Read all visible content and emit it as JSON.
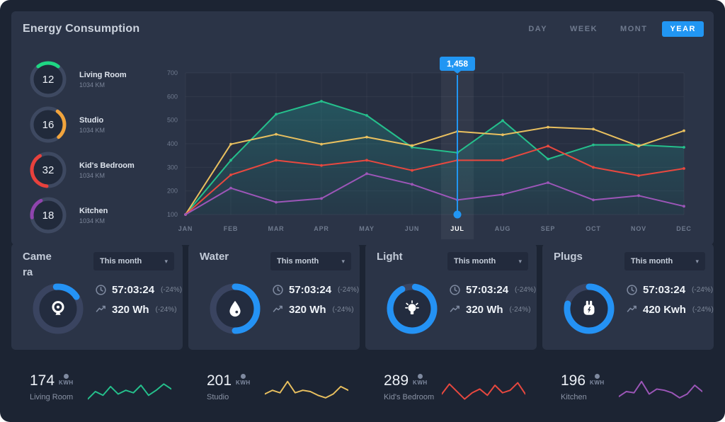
{
  "header": {
    "title": "Energy Consumption",
    "tabs": [
      {
        "label": "DAY",
        "active": false
      },
      {
        "label": "WEEK",
        "active": false
      },
      {
        "label": "MONT",
        "active": false
      },
      {
        "label": "YEAR",
        "active": true
      }
    ],
    "accent": "#2196f3"
  },
  "rooms": [
    {
      "value": "12",
      "label": "Living Room",
      "sub": "1034 KM",
      "color": "#1ed783",
      "arc_start": -38,
      "arc_sweep": 76
    },
    {
      "value": "16",
      "label": "Studio",
      "sub": "1034 KM",
      "color": "#f2a43c",
      "arc_start": 35,
      "arc_sweep": 105
    },
    {
      "value": "32",
      "label": "Kid's Bedroom",
      "sub": "1034 KM",
      "color": "#e8413c",
      "arc_start": 185,
      "arc_sweep": 145
    },
    {
      "value": "18",
      "label": "Kitchen",
      "sub": "1034 KM",
      "color": "#8f44ad",
      "arc_start": 262,
      "arc_sweep": 72
    }
  ],
  "chart_data": {
    "type": "line",
    "x": [
      "JAN",
      "FEB",
      "MAR",
      "APR",
      "MAY",
      "JUN",
      "JUL",
      "AUG",
      "SEP",
      "OCT",
      "NOV",
      "DEC"
    ],
    "ylim": [
      100,
      700
    ],
    "yticks": [
      100,
      200,
      300,
      400,
      500,
      600,
      700
    ],
    "grid": true,
    "legend": "none",
    "highlight_month": "JUL",
    "tooltip": {
      "label": "1,458",
      "month": "JUL",
      "month_index": 6,
      "dot_value": 100
    },
    "area_series": "Living Room",
    "series": [
      {
        "name": "Living Room",
        "color": "#25c08c",
        "values": [
          100,
          330,
          525,
          580,
          520,
          385,
          362,
          498,
          335,
          395,
          395,
          385
        ]
      },
      {
        "name": "Studio",
        "color": "#e9c05f",
        "values": [
          100,
          398,
          440,
          398,
          428,
          392,
          452,
          438,
          470,
          462,
          390,
          455
        ]
      },
      {
        "name": "Kid's Bedroom",
        "color": "#e8483f",
        "values": [
          100,
          268,
          330,
          308,
          330,
          287,
          330,
          330,
          390,
          300,
          265,
          295
        ]
      },
      {
        "name": "Kitchen",
        "color": "#9c56b8",
        "values": [
          100,
          212,
          152,
          168,
          273,
          228,
          162,
          185,
          235,
          162,
          180,
          135
        ]
      }
    ]
  },
  "cards": [
    {
      "title": "Camera",
      "dropdown_label": "This month",
      "icon": "webcam-icon",
      "accent": "#2492f4",
      "arc_start": -5,
      "arc_sweep": 62,
      "time": "57:03:24",
      "time_delta": "(-24%)",
      "energy": "320 Wh",
      "energy_delta": "(-24%)"
    },
    {
      "title": "Water",
      "dropdown_label": "This month",
      "icon": "water-drop-icon",
      "accent": "#2492f4",
      "arc_start": 0,
      "arc_sweep": 180,
      "time": "57:03:24",
      "time_delta": "(-24%)",
      "energy": "320 Wh",
      "energy_delta": "(-24%)"
    },
    {
      "title": "Light",
      "dropdown_label": "This month",
      "icon": "light-bulb-icon",
      "accent": "#2492f4",
      "arc_start": 8,
      "arc_sweep": 325,
      "time": "57:03:24",
      "time_delta": "(-24%)",
      "energy": "320 Wh",
      "energy_delta": "(-24%)"
    },
    {
      "title": "Plugs",
      "dropdown_label": "This month",
      "icon": "plug-icon",
      "accent": "#2492f4",
      "arc_start": 0,
      "arc_sweep": 283,
      "time": "57:03:24",
      "time_delta": "(-24%)",
      "energy": "420 Kwh",
      "energy_delta": "(-24%)"
    }
  ],
  "footer": [
    {
      "value": "174",
      "unit": "KWH",
      "label": "Living Room",
      "color": "#25c08c",
      "spark": [
        2,
        5,
        3.5,
        7,
        4,
        5.5,
        4.5,
        7.5,
        3.5,
        5.5,
        8,
        6
      ]
    },
    {
      "value": "201",
      "unit": "KWH",
      "label": "Studio",
      "color": "#e9c05f",
      "spark": [
        4,
        5.5,
        4.5,
        9,
        4.5,
        5.5,
        5,
        3.5,
        2.5,
        4,
        7,
        5.5
      ]
    },
    {
      "value": "289",
      "unit": "KWH",
      "label": "Kid's Bedroom",
      "color": "#e8483f",
      "spark": [
        4,
        8,
        5,
        2,
        4.5,
        6,
        3.5,
        7.5,
        4.5,
        5.5,
        8.5,
        4
      ]
    },
    {
      "value": "196",
      "unit": "KWH",
      "label": "Kitchen",
      "color": "#9c56b8",
      "spark": [
        3,
        5,
        4.5,
        9,
        4,
        6,
        5.5,
        4.5,
        2.5,
        4,
        7.5,
        5
      ]
    }
  ]
}
